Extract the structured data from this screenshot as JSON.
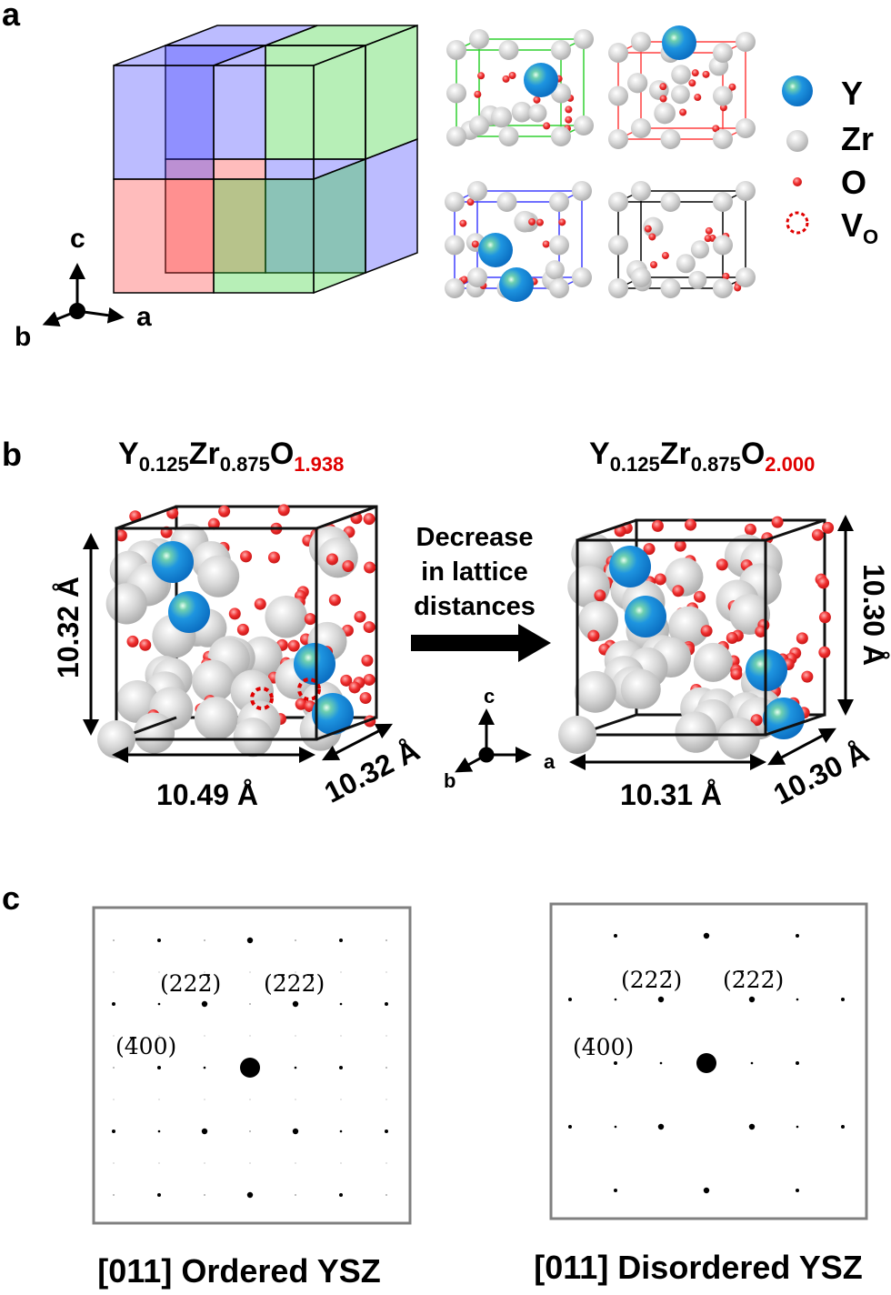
{
  "panels": {
    "a": "a",
    "b": "b",
    "c": "c"
  },
  "legend": {
    "items": [
      {
        "symbol": "Y",
        "color": "#1a8fe0"
      },
      {
        "symbol": "Zr",
        "color": "#d0d0d0"
      },
      {
        "symbol": "O",
        "color": "#f03030"
      },
      {
        "symbol": "V",
        "subscript": "O",
        "color": "#e00000",
        "style": "dashed-circle"
      }
    ]
  },
  "axes_a": {
    "a": "a",
    "b": "b",
    "c": "c"
  },
  "axes_b": {
    "a": "a",
    "b": "b",
    "c": "c"
  },
  "subcell_colors": [
    "#4040ff",
    "#30d030",
    "#ff4040",
    "#000000"
  ],
  "panel_b": {
    "left": {
      "formula": {
        "el1": "Y",
        "x1": "0.125",
        "el2": "Zr",
        "x2": "0.875",
        "el3": "O",
        "x3": "1.938"
      },
      "dim_c": "10.32 Å",
      "dim_a": "10.49 Å",
      "dim_b": "10.32 Å"
    },
    "right": {
      "formula": {
        "el1": "Y",
        "x1": "0.125",
        "el2": "Zr",
        "x2": "0.875",
        "el3": "O",
        "x3": "2.000"
      },
      "dim_c": "10.30 Å",
      "dim_a": "10.31 Å",
      "dim_b": "10.30 Å"
    },
    "arrow_text": [
      "Decrease",
      "in lattice",
      "distances"
    ],
    "oxygen_subscript_color": "#e00000"
  },
  "panel_c": {
    "left": {
      "title": "[011] Ordered YSZ",
      "labels": [
        "(222̄)",
        "(2̄22̄)",
        "(4̄00)"
      ]
    },
    "right": {
      "title": "[011] Disordered YSZ",
      "labels": [
        "(222̄)",
        "(2̄22̄)",
        "(4̄00)"
      ]
    }
  }
}
